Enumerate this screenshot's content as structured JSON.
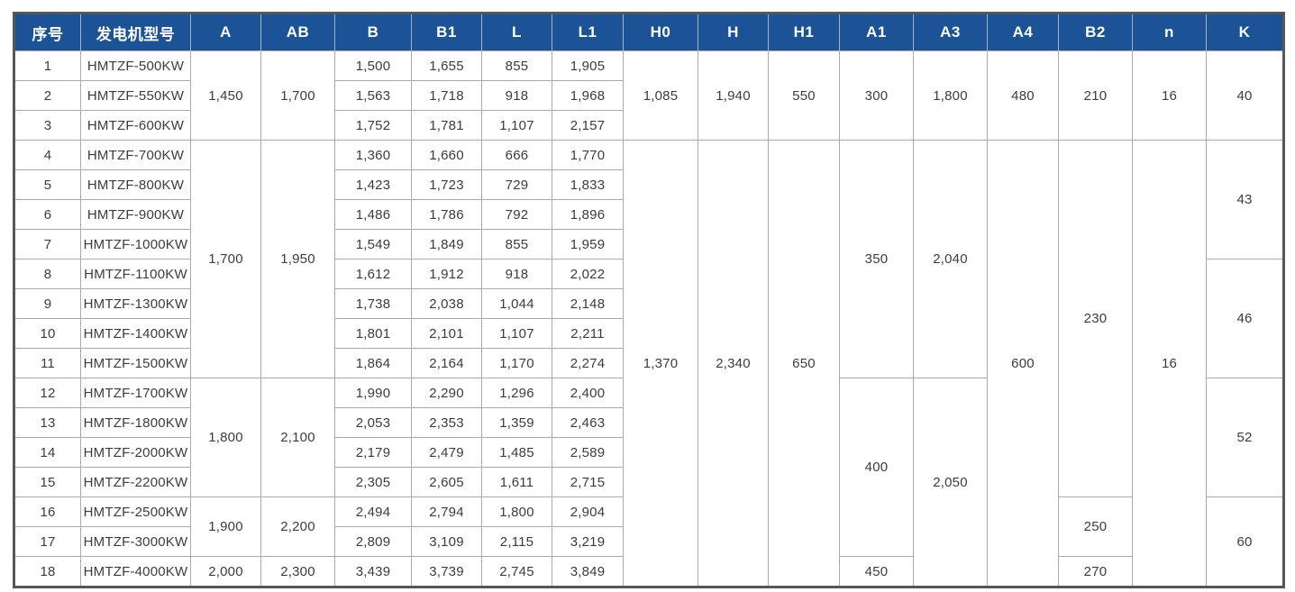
{
  "accent_color": "#1c5396",
  "grid_line_color": "#a6abb0",
  "outer_border_color": "#55585b",
  "table": {
    "headers": [
      {
        "key": "index",
        "label": "序号"
      },
      {
        "key": "model",
        "label": "发电机型号"
      },
      {
        "key": "A",
        "label": "A"
      },
      {
        "key": "AB",
        "label": "AB"
      },
      {
        "key": "B",
        "label": "B"
      },
      {
        "key": "B1",
        "label": "B1"
      },
      {
        "key": "L",
        "label": "L"
      },
      {
        "key": "L1",
        "label": "L1"
      },
      {
        "key": "H0",
        "label": "H0"
      },
      {
        "key": "H",
        "label": "H"
      },
      {
        "key": "H1",
        "label": "H1"
      },
      {
        "key": "A1",
        "label": "A1"
      },
      {
        "key": "A3",
        "label": "A3"
      },
      {
        "key": "A4",
        "label": "A4"
      },
      {
        "key": "B2",
        "label": "B2"
      },
      {
        "key": "n",
        "label": "n"
      },
      {
        "key": "K",
        "label": "K"
      }
    ],
    "rows": [
      {
        "cells": [
          {
            "v": "1"
          },
          {
            "v": "HMTZF-500KW"
          },
          {
            "v": "1,450",
            "rs": 3
          },
          {
            "v": "1,700",
            "rs": 3
          },
          {
            "v": "1,500"
          },
          {
            "v": "1,655"
          },
          {
            "v": "855"
          },
          {
            "v": "1,905"
          },
          {
            "v": "1,085",
            "rs": 3
          },
          {
            "v": "1,940",
            "rs": 3
          },
          {
            "v": "550",
            "rs": 3
          },
          {
            "v": "300",
            "rs": 3
          },
          {
            "v": "1,800",
            "rs": 3
          },
          {
            "v": "480",
            "rs": 3
          },
          {
            "v": "210",
            "rs": 3
          },
          {
            "v": "16",
            "rs": 3
          },
          {
            "v": "40",
            "rs": 3
          }
        ]
      },
      {
        "cells": [
          {
            "v": "2"
          },
          {
            "v": "HMTZF-550KW"
          },
          {
            "v": "1,563"
          },
          {
            "v": "1,718"
          },
          {
            "v": "918"
          },
          {
            "v": "1,968"
          }
        ]
      },
      {
        "cells": [
          {
            "v": "3"
          },
          {
            "v": "HMTZF-600KW"
          },
          {
            "v": "1,752"
          },
          {
            "v": "1,781"
          },
          {
            "v": "1,107"
          },
          {
            "v": "2,157"
          }
        ]
      },
      {
        "cells": [
          {
            "v": "4"
          },
          {
            "v": "HMTZF-700KW"
          },
          {
            "v": "1,700",
            "rs": 8
          },
          {
            "v": "1,950",
            "rs": 8
          },
          {
            "v": "1,360"
          },
          {
            "v": "1,660"
          },
          {
            "v": "666"
          },
          {
            "v": "1,770"
          },
          {
            "v": "1,370",
            "rs": 15
          },
          {
            "v": "2,340",
            "rs": 15
          },
          {
            "v": "650",
            "rs": 15
          },
          {
            "v": "350",
            "rs": 8
          },
          {
            "v": "2,040",
            "rs": 8
          },
          {
            "v": "600",
            "rs": 15
          },
          {
            "v": "230",
            "rs": 12
          },
          {
            "v": "16",
            "rs": 15
          },
          {
            "v": "43",
            "rs": 4
          }
        ]
      },
      {
        "cells": [
          {
            "v": "5"
          },
          {
            "v": "HMTZF-800KW"
          },
          {
            "v": "1,423"
          },
          {
            "v": "1,723"
          },
          {
            "v": "729"
          },
          {
            "v": "1,833"
          }
        ]
      },
      {
        "cells": [
          {
            "v": "6"
          },
          {
            "v": "HMTZF-900KW"
          },
          {
            "v": "1,486"
          },
          {
            "v": "1,786"
          },
          {
            "v": "792"
          },
          {
            "v": "1,896"
          }
        ]
      },
      {
        "cells": [
          {
            "v": "7"
          },
          {
            "v": "HMTZF-1000KW"
          },
          {
            "v": "1,549"
          },
          {
            "v": "1,849"
          },
          {
            "v": "855"
          },
          {
            "v": "1,959"
          }
        ]
      },
      {
        "cells": [
          {
            "v": "8"
          },
          {
            "v": "HMTZF-1100KW"
          },
          {
            "v": "1,612"
          },
          {
            "v": "1,912"
          },
          {
            "v": "918"
          },
          {
            "v": "2,022"
          },
          {
            "v": "46",
            "rs": 4
          }
        ]
      },
      {
        "cells": [
          {
            "v": "9"
          },
          {
            "v": "HMTZF-1300KW"
          },
          {
            "v": "1,738"
          },
          {
            "v": "2,038"
          },
          {
            "v": "1,044"
          },
          {
            "v": "2,148"
          }
        ]
      },
      {
        "cells": [
          {
            "v": "10"
          },
          {
            "v": "HMTZF-1400KW"
          },
          {
            "v": "1,801"
          },
          {
            "v": "2,101"
          },
          {
            "v": "1,107"
          },
          {
            "v": "2,211"
          }
        ]
      },
      {
        "cells": [
          {
            "v": "11"
          },
          {
            "v": "HMTZF-1500KW"
          },
          {
            "v": "1,864"
          },
          {
            "v": "2,164"
          },
          {
            "v": "1,170"
          },
          {
            "v": "2,274"
          }
        ]
      },
      {
        "cells": [
          {
            "v": "12"
          },
          {
            "v": "HMTZF-1700KW"
          },
          {
            "v": "1,800",
            "rs": 4
          },
          {
            "v": "2,100",
            "rs": 4
          },
          {
            "v": "1,990"
          },
          {
            "v": "2,290"
          },
          {
            "v": "1,296"
          },
          {
            "v": "2,400"
          },
          {
            "v": "400",
            "rs": 6
          },
          {
            "v": "2,050",
            "rs": 7
          },
          {
            "v": "52",
            "rs": 4
          }
        ]
      },
      {
        "cells": [
          {
            "v": "13"
          },
          {
            "v": "HMTZF-1800KW"
          },
          {
            "v": "2,053"
          },
          {
            "v": "2,353"
          },
          {
            "v": "1,359"
          },
          {
            "v": "2,463"
          }
        ]
      },
      {
        "cells": [
          {
            "v": "14"
          },
          {
            "v": "HMTZF-2000KW"
          },
          {
            "v": "2,179"
          },
          {
            "v": "2,479"
          },
          {
            "v": "1,485"
          },
          {
            "v": "2,589"
          }
        ]
      },
      {
        "cells": [
          {
            "v": "15"
          },
          {
            "v": "HMTZF-2200KW"
          },
          {
            "v": "2,305"
          },
          {
            "v": "2,605"
          },
          {
            "v": "1,611"
          },
          {
            "v": "2,715"
          }
        ]
      },
      {
        "cells": [
          {
            "v": "16"
          },
          {
            "v": "HMTZF-2500KW"
          },
          {
            "v": "1,900",
            "rs": 2
          },
          {
            "v": "2,200",
            "rs": 2
          },
          {
            "v": "2,494"
          },
          {
            "v": "2,794"
          },
          {
            "v": "1,800"
          },
          {
            "v": "2,904"
          },
          {
            "v": "250",
            "rs": 2
          },
          {
            "v": "60",
            "rs": 3
          }
        ]
      },
      {
        "cells": [
          {
            "v": "17"
          },
          {
            "v": "HMTZF-3000KW"
          },
          {
            "v": "2,809"
          },
          {
            "v": "3,109"
          },
          {
            "v": "2,115"
          },
          {
            "v": "3,219"
          }
        ]
      },
      {
        "cells": [
          {
            "v": "18"
          },
          {
            "v": "HMTZF-4000KW"
          },
          {
            "v": "2,000"
          },
          {
            "v": "2,300"
          },
          {
            "v": "3,439"
          },
          {
            "v": "3,739"
          },
          {
            "v": "2,745"
          },
          {
            "v": "3,849"
          },
          {
            "v": "450"
          },
          {
            "v": "270"
          }
        ]
      }
    ]
  }
}
